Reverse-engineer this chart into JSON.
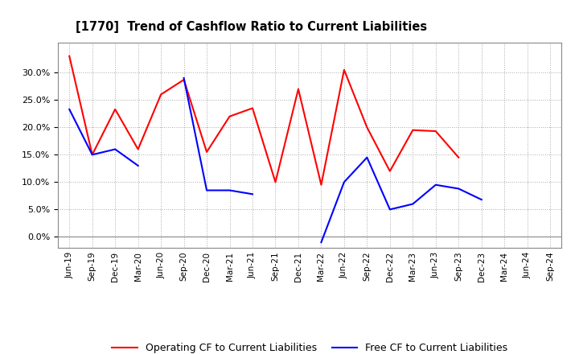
{
  "title": "[1770]  Trend of Cashflow Ratio to Current Liabilities",
  "x_labels": [
    "Jun-19",
    "Sep-19",
    "Dec-19",
    "Mar-20",
    "Jun-20",
    "Sep-20",
    "Dec-20",
    "Mar-21",
    "Jun-21",
    "Sep-21",
    "Dec-21",
    "Mar-22",
    "Jun-22",
    "Sep-22",
    "Dec-22",
    "Mar-23",
    "Jun-23",
    "Sep-23",
    "Dec-23",
    "Mar-24",
    "Jun-24",
    "Sep-24"
  ],
  "operating_cf": [
    0.33,
    0.15,
    0.233,
    0.16,
    0.26,
    0.287,
    0.155,
    0.22,
    0.235,
    0.1,
    0.27,
    0.095,
    0.305,
    0.2,
    0.12,
    0.195,
    0.193,
    0.145,
    null,
    null,
    null,
    null
  ],
  "free_cf": [
    0.233,
    0.15,
    0.16,
    0.13,
    null,
    0.29,
    0.085,
    0.085,
    0.078,
    null,
    null,
    -0.01,
    0.1,
    0.145,
    0.05,
    0.06,
    0.095,
    0.088,
    0.068,
    null,
    null,
    null
  ],
  "operating_cf_color": "#ff0000",
  "free_cf_color": "#0000ff",
  "background_color": "#ffffff",
  "plot_bg_color": "#ffffff",
  "grid_color": "#aaaaaa",
  "ylim": [
    -0.02,
    0.355
  ],
  "yticks": [
    0.0,
    0.05,
    0.1,
    0.15,
    0.2,
    0.25,
    0.3
  ],
  "legend_op": "Operating CF to Current Liabilities",
  "legend_free": "Free CF to Current Liabilities"
}
